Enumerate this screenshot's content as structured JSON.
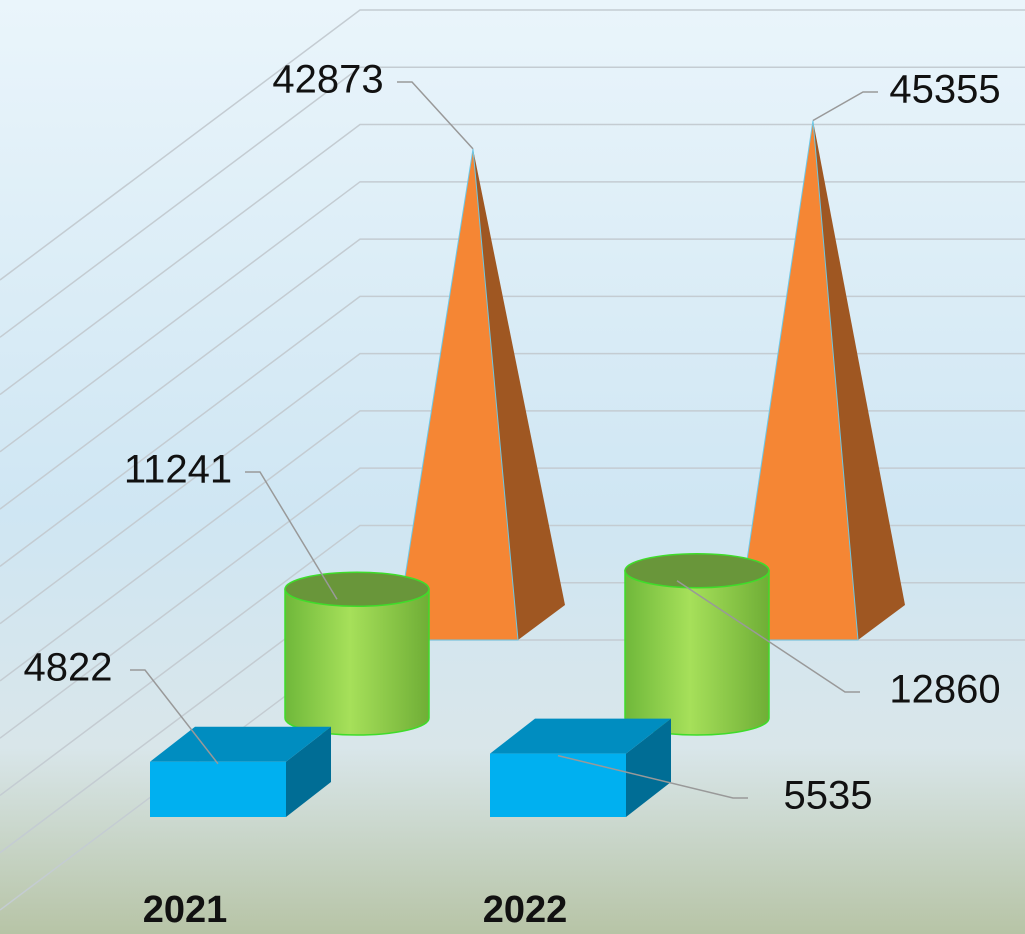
{
  "chart_data": {
    "type": "bar3d",
    "categories": [
      "2021",
      "2022"
    ],
    "series": [
      {
        "shape": "box",
        "color": "#00b0f0",
        "values": [
          4822,
          5535
        ]
      },
      {
        "shape": "cylinder",
        "color": "#92d050",
        "values": [
          11241,
          12860
        ]
      },
      {
        "shape": "pyramid",
        "color": "#f58634",
        "values": [
          42873,
          45355
        ]
      }
    ],
    "ylim": [
      0,
      55000
    ],
    "yticks": [
      0,
      5000,
      10000,
      15000,
      20000,
      25000,
      30000,
      35000,
      40000,
      45000,
      50000,
      55000
    ],
    "grid": true
  }
}
